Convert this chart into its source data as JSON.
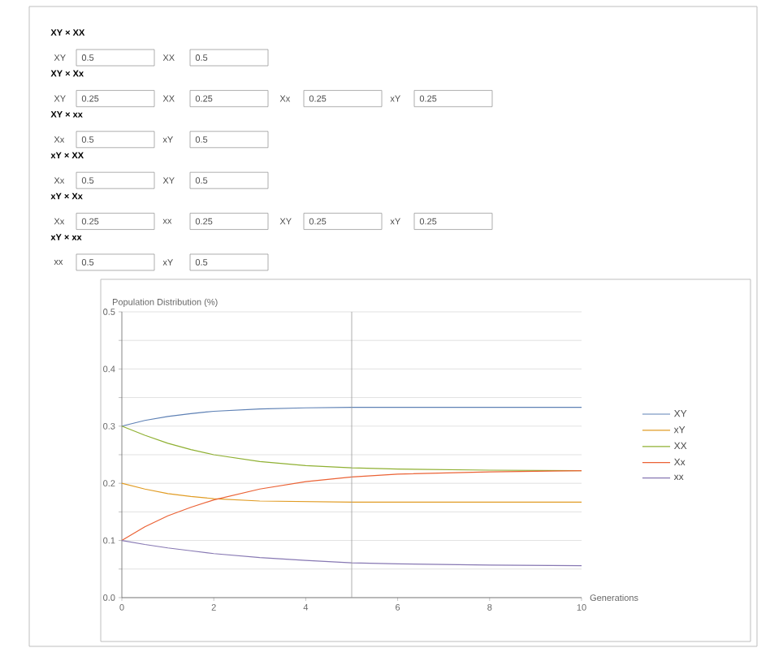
{
  "chart_data": [
    {
      "type": "other",
      "annotations": [
        "XY × XX",
        "XY",
        "0.5",
        "XX",
        "0.5",
        "XY × Xx",
        "XY",
        "0.25",
        "XX",
        "0.25",
        "Xx",
        "0.25",
        "xY",
        "0.25",
        "XY × xx",
        "Xx",
        "0.5",
        "xY",
        "0.5",
        "xY × XX",
        "Xx",
        "0.5",
        "XY",
        "0.5",
        "xY × Xx",
        "Xx",
        "0.25",
        "xx",
        "0.25",
        "XY",
        "0.25",
        "xY",
        "0.25",
        "xY × xx",
        "xx",
        "0.5",
        "xY",
        "0.5"
      ]
    },
    {
      "type": "line",
      "xlabel": "Generations",
      "ylabel": "Population Distribution (%)",
      "x": [
        0,
        0.5,
        1,
        1.5,
        2,
        3,
        4,
        5,
        6,
        8,
        10
      ],
      "series": [
        {
          "name": "XY",
          "color": "#5e81b5",
          "values": [
            0.3,
            0.31,
            0.317,
            0.322,
            0.326,
            0.33,
            0.332,
            0.333,
            0.333,
            0.333,
            0.333
          ]
        },
        {
          "name": "xY",
          "color": "#e19c24",
          "values": [
            0.2,
            0.19,
            0.182,
            0.177,
            0.173,
            0.169,
            0.168,
            0.167,
            0.167,
            0.167,
            0.167
          ]
        },
        {
          "name": "XX",
          "color": "#8fb032",
          "values": [
            0.3,
            0.284,
            0.27,
            0.259,
            0.25,
            0.238,
            0.231,
            0.227,
            0.225,
            0.223,
            0.222
          ]
        },
        {
          "name": "Xx",
          "color": "#eb6235",
          "values": [
            0.1,
            0.124,
            0.143,
            0.158,
            0.171,
            0.19,
            0.203,
            0.211,
            0.216,
            0.22,
            0.222
          ]
        },
        {
          "name": "xx",
          "color": "#8778b3",
          "values": [
            0.1,
            0.093,
            0.087,
            0.082,
            0.077,
            0.07,
            0.065,
            0.061,
            0.059,
            0.057,
            0.056
          ]
        }
      ],
      "xlim": [
        0,
        10
      ],
      "ylim": [
        0,
        0.5
      ],
      "xticks": [
        0,
        2,
        4,
        6,
        8,
        10
      ],
      "yticks": [
        {
          "value": 0,
          "label": "0.0"
        },
        {
          "value": 0.05,
          "label": null
        },
        {
          "value": 0.1,
          "label": "0.1"
        },
        {
          "value": 0.15,
          "label": null
        },
        {
          "value": 0.2,
          "label": "0.2"
        },
        {
          "value": 0.25,
          "label": null
        },
        {
          "value": 0.3,
          "label": "0.3"
        },
        {
          "value": 0.35,
          "label": null
        },
        {
          "value": 0.4,
          "label": "0.4"
        },
        {
          "value": 0.45,
          "label": null
        },
        {
          "value": 0.5,
          "label": "0.5"
        }
      ],
      "grid": "y",
      "legend": "right",
      "ref_lines": [
        {
          "axis": "x",
          "value": 5,
          "color": "#999999"
        }
      ]
    }
  ]
}
